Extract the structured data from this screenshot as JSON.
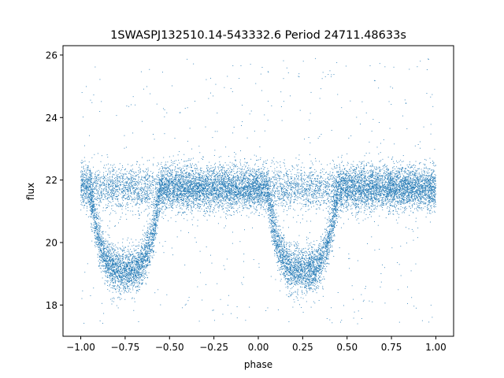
{
  "chart_data": {
    "type": "scatter",
    "title": "1SWASPJ132510.14-543332.6 Period 24711.48633s",
    "xlabel": "phase",
    "ylabel": "flux",
    "xlim": [
      -1.1,
      1.1
    ],
    "ylim": [
      17.0,
      26.3
    ],
    "xticks": [
      -1.0,
      -0.75,
      -0.5,
      -0.25,
      0.0,
      0.25,
      0.5,
      0.75,
      1.0
    ],
    "xtick_labels": [
      "−1.00",
      "−0.75",
      "−0.50",
      "−0.25",
      "0.00",
      "0.25",
      "0.50",
      "0.75",
      "1.00"
    ],
    "yticks": [
      18,
      20,
      22,
      24,
      26
    ],
    "ytick_labels": [
      "18",
      "20",
      "22",
      "24",
      "26"
    ],
    "grid": false,
    "marker_color": "#1f77b4",
    "series": [
      {
        "phase_range": [
          -1.0,
          1.0
        ],
        "baseline_flux": 21.75,
        "baseline_scatter": 0.35,
        "eclipses": [
          {
            "center_phase": -0.75,
            "depth_flux": 19.1,
            "half_width": 0.2
          },
          {
            "center_phase": 0.25,
            "depth_flux": 19.1,
            "half_width": 0.2
          }
        ],
        "outlier_range": [
          17.4,
          25.9
        ]
      }
    ]
  }
}
